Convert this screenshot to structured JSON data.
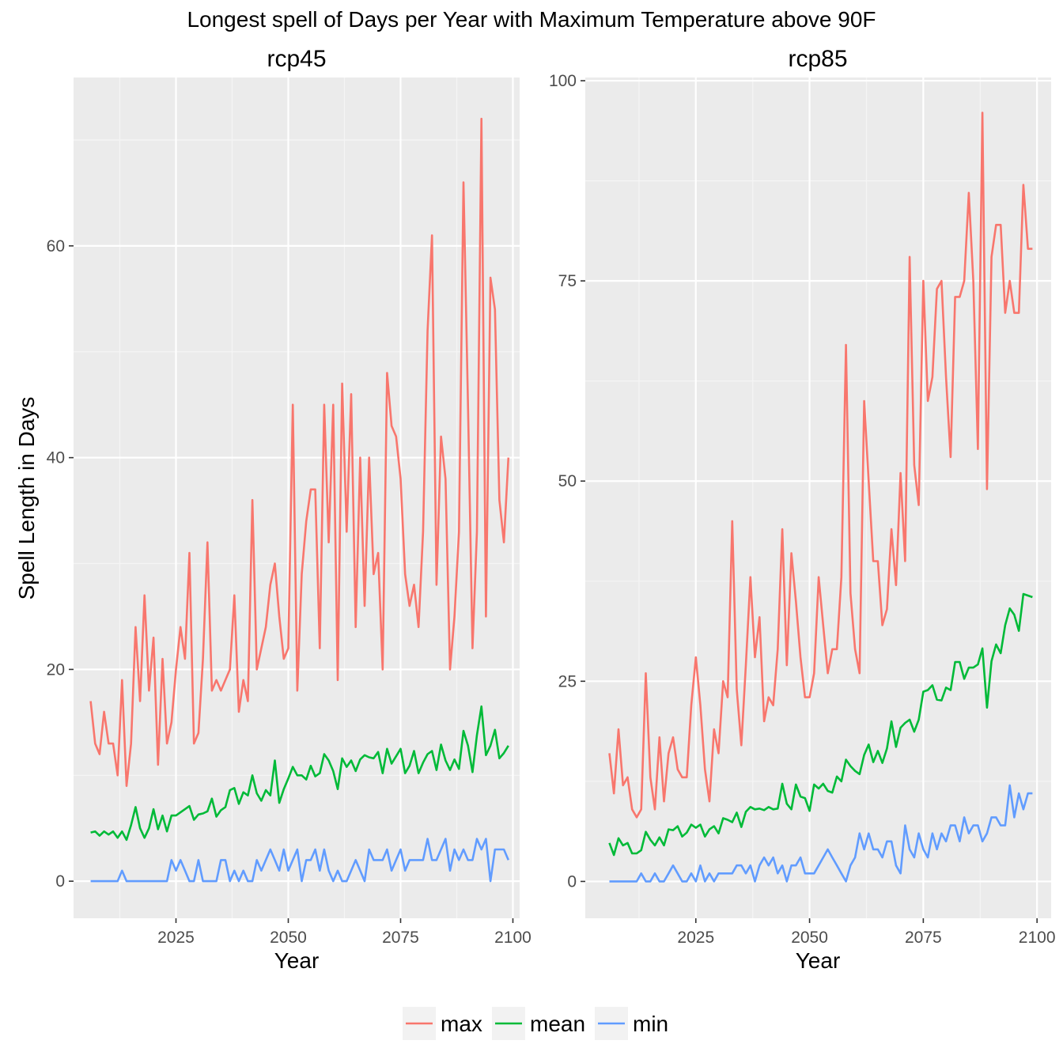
{
  "title": "Longest spell of Days per Year with Maximum Temperature above 90F",
  "legend": [
    {
      "label": "max",
      "color": "#F8766D"
    },
    {
      "label": "mean",
      "color": "#00BA38"
    },
    {
      "label": "min",
      "color": "#619CFF"
    }
  ],
  "chart_data": [
    {
      "type": "line",
      "panel_title": "rcp45",
      "xlabel": "Year",
      "ylabel": "Spell Length in Days",
      "xlim": [
        2002.2,
        2101.5
      ],
      "ylim": [
        -3.5,
        75.9
      ],
      "x_ticks": [
        "2025",
        "2050",
        "2075",
        "2100"
      ],
      "x_tick_values": [
        2025,
        2050,
        2075,
        2100
      ],
      "y_ticks": [
        "0",
        "20",
        "40",
        "60"
      ],
      "y_tick_values": [
        0,
        20,
        40,
        60
      ],
      "x": [
        2006,
        2007,
        2008,
        2009,
        2010,
        2011,
        2012,
        2013,
        2014,
        2015,
        2016,
        2017,
        2018,
        2019,
        2020,
        2021,
        2022,
        2023,
        2024,
        2025,
        2026,
        2027,
        2028,
        2029,
        2030,
        2031,
        2032,
        2033,
        2034,
        2035,
        2036,
        2037,
        2038,
        2039,
        2040,
        2041,
        2042,
        2043,
        2044,
        2045,
        2046,
        2047,
        2048,
        2049,
        2050,
        2051,
        2052,
        2053,
        2054,
        2055,
        2056,
        2057,
        2058,
        2059,
        2060,
        2061,
        2062,
        2063,
        2064,
        2065,
        2066,
        2067,
        2068,
        2069,
        2070,
        2071,
        2072,
        2073,
        2074,
        2075,
        2076,
        2077,
        2078,
        2079,
        2080,
        2081,
        2082,
        2083,
        2084,
        2085,
        2086,
        2087,
        2088,
        2089,
        2090,
        2091,
        2092,
        2093,
        2094,
        2095,
        2096,
        2097,
        2098,
        2099
      ],
      "series": [
        {
          "name": "max",
          "color": "#F8766D",
          "values": [
            17,
            13,
            12,
            16,
            13,
            13,
            10,
            19,
            9,
            13,
            24,
            17,
            27,
            18,
            23,
            11,
            21,
            13,
            15,
            20,
            24,
            21,
            31,
            13,
            14,
            21,
            32,
            18,
            19,
            18,
            19,
            20,
            27,
            16,
            19,
            17,
            36,
            20,
            22,
            24,
            28,
            30,
            25,
            21,
            22,
            45,
            18,
            29,
            34,
            37,
            37,
            22,
            45,
            32,
            45,
            19,
            47,
            33,
            46,
            24,
            40,
            26,
            40,
            29,
            31,
            20,
            48,
            43,
            42,
            38,
            29,
            26,
            28,
            24,
            33,
            52,
            61,
            28,
            42,
            38,
            20,
            25,
            33,
            66,
            45,
            22,
            33,
            72,
            25,
            57,
            54,
            36,
            32,
            40
          ]
        },
        {
          "name": "mean",
          "color": "#00BA38",
          "values": [
            4.6,
            4.7,
            4.3,
            4.7,
            4.4,
            4.7,
            4.1,
            4.7,
            3.9,
            5.3,
            7.0,
            5.0,
            4.1,
            5.0,
            6.8,
            4.9,
            6.2,
            4.7,
            6.2,
            6.2,
            6.5,
            6.8,
            7.1,
            5.8,
            6.3,
            6.4,
            6.6,
            7.8,
            6.1,
            6.7,
            7.0,
            8.6,
            8.8,
            7.3,
            8.4,
            8.1,
            10.0,
            8.3,
            7.6,
            8.6,
            8.1,
            11.4,
            7.4,
            8.7,
            9.7,
            10.8,
            10.0,
            10.0,
            9.6,
            10.9,
            9.9,
            10.2,
            12.0,
            11.4,
            10.4,
            8.7,
            11.6,
            10.8,
            11.4,
            10.4,
            11.5,
            11.9,
            11.7,
            11.6,
            12.2,
            10.2,
            12.5,
            11.1,
            11.8,
            12.5,
            10.2,
            10.9,
            12.3,
            10.2,
            11.2,
            12.0,
            12.3,
            10.5,
            12.9,
            11.4,
            10.5,
            11.5,
            10.6,
            14.2,
            12.8,
            10.3,
            13.8,
            16.5,
            11.9,
            12.8,
            14.3,
            11.6,
            12.1,
            12.8
          ]
        },
        {
          "name": "min",
          "color": "#619CFF",
          "values": [
            0,
            0,
            0,
            0,
            0,
            0,
            0,
            1,
            0,
            0,
            0,
            0,
            0,
            0,
            0,
            0,
            0,
            0,
            2,
            1,
            2,
            1,
            0,
            0,
            2,
            0,
            0,
            0,
            0,
            2,
            2,
            0,
            1,
            0,
            1,
            0,
            0,
            2,
            1,
            2,
            3,
            2,
            1,
            3,
            1,
            2,
            3,
            0,
            2,
            2,
            3,
            1,
            3,
            1,
            0,
            1,
            0,
            0,
            1,
            2,
            1,
            0,
            3,
            2,
            2,
            2,
            3,
            1,
            2,
            3,
            1,
            2,
            2,
            2,
            2,
            4,
            2,
            2,
            3,
            4,
            1,
            3,
            2,
            3,
            2,
            2,
            4,
            3,
            4,
            0,
            3,
            3,
            3,
            2
          ]
        }
      ]
    },
    {
      "type": "line",
      "panel_title": "rcp85",
      "xlabel": "Year",
      "ylabel": "",
      "xlim": [
        2000.7,
        2103.1
      ],
      "ylim": [
        -4.6,
        100.4
      ],
      "x_ticks": [
        "2025",
        "2050",
        "2075",
        "2100"
      ],
      "x_tick_values": [
        2025,
        2050,
        2075,
        2100
      ],
      "y_ticks": [
        "0",
        "25",
        "50",
        "75",
        "100"
      ],
      "y_tick_values": [
        0,
        25,
        50,
        75,
        100
      ],
      "x": [
        2006,
        2007,
        2008,
        2009,
        2010,
        2011,
        2012,
        2013,
        2014,
        2015,
        2016,
        2017,
        2018,
        2019,
        2020,
        2021,
        2022,
        2023,
        2024,
        2025,
        2026,
        2027,
        2028,
        2029,
        2030,
        2031,
        2032,
        2033,
        2034,
        2035,
        2036,
        2037,
        2038,
        2039,
        2040,
        2041,
        2042,
        2043,
        2044,
        2045,
        2046,
        2047,
        2048,
        2049,
        2050,
        2051,
        2052,
        2053,
        2054,
        2055,
        2056,
        2057,
        2058,
        2059,
        2060,
        2061,
        2062,
        2063,
        2064,
        2065,
        2066,
        2067,
        2068,
        2069,
        2070,
        2071,
        2072,
        2073,
        2074,
        2075,
        2076,
        2077,
        2078,
        2079,
        2080,
        2081,
        2082,
        2083,
        2084,
        2085,
        2086,
        2087,
        2088,
        2089,
        2090,
        2091,
        2092,
        2093,
        2094,
        2095,
        2096,
        2097,
        2098,
        2099
      ],
      "series": [
        {
          "name": "max",
          "color": "#F8766D",
          "values": [
            16,
            11,
            19,
            12,
            13,
            9,
            8,
            9,
            26,
            13,
            9,
            18,
            10,
            16,
            18,
            14,
            13,
            13,
            22,
            28,
            22,
            14,
            10,
            19,
            16,
            25,
            23,
            45,
            24,
            17,
            27,
            38,
            28,
            33,
            20,
            23,
            22,
            29,
            44,
            27,
            41,
            35,
            28,
            23,
            23,
            26,
            38,
            32,
            26,
            29,
            29,
            38,
            67,
            36,
            29,
            26,
            60,
            50,
            40,
            40,
            32,
            34,
            44,
            37,
            51,
            40,
            78,
            52,
            47,
            75,
            60,
            63,
            74,
            75,
            63,
            53,
            73,
            73,
            75,
            86,
            75,
            54,
            96,
            49,
            78,
            82,
            82,
            71,
            75,
            71,
            71,
            87,
            79,
            79
          ]
        },
        {
          "name": "mean",
          "color": "#00BA38",
          "values": [
            4.8,
            3.3,
            5.4,
            4.5,
            4.8,
            3.5,
            3.5,
            3.9,
            6.2,
            5.2,
            4.5,
            5.5,
            4.5,
            6.5,
            6.4,
            6.9,
            5.6,
            6.1,
            7.1,
            6.7,
            7.1,
            5.6,
            6.5,
            6.9,
            6.0,
            7.9,
            7.7,
            7.4,
            8.6,
            6.8,
            8.7,
            9.3,
            9.0,
            9.1,
            8.9,
            9.3,
            9.0,
            9.1,
            12.2,
            9.7,
            9.0,
            12.1,
            10.6,
            10.4,
            8.8,
            12.1,
            11.6,
            12.2,
            11.3,
            11.1,
            13.1,
            12.5,
            15.2,
            14.4,
            13.8,
            13.4,
            15.8,
            17.1,
            14.9,
            16.3,
            14.8,
            16.6,
            20.0,
            16.8,
            19.2,
            19.8,
            20.2,
            18.7,
            20.2,
            23.7,
            23.9,
            24.5,
            22.7,
            22.6,
            24.2,
            23.9,
            27.4,
            27.4,
            25.3,
            26.7,
            26.7,
            27.1,
            29.1,
            21.7,
            27.5,
            29.6,
            28.5,
            32.0,
            34.1,
            33.3,
            31.3,
            35.9,
            35.7,
            35.5
          ]
        },
        {
          "name": "min",
          "color": "#619CFF",
          "values": [
            0,
            0,
            0,
            0,
            0,
            0,
            0,
            1,
            0,
            0,
            1,
            0,
            0,
            1,
            2,
            1,
            0,
            0,
            1,
            0,
            2,
            0,
            1,
            0,
            1,
            1,
            1,
            1,
            2,
            2,
            1,
            2,
            0,
            2,
            3,
            2,
            3,
            1,
            2,
            0,
            2,
            2,
            3,
            1,
            1,
            1,
            2,
            3,
            4,
            3,
            2,
            1,
            0,
            2,
            3,
            6,
            4,
            6,
            4,
            4,
            3,
            5,
            5,
            2,
            1,
            7,
            4,
            3,
            6,
            4,
            3,
            6,
            4,
            6,
            5,
            7,
            7,
            5,
            8,
            6,
            7,
            7,
            5,
            6,
            8,
            8,
            7,
            7,
            12,
            8,
            11,
            9,
            11,
            11
          ]
        }
      ]
    }
  ]
}
